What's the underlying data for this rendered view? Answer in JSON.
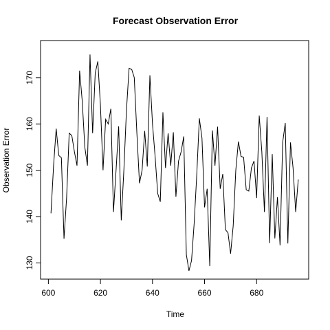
{
  "chart_data": {
    "type": "line",
    "title": "Forecast Observation Error",
    "xlabel": "Time",
    "ylabel": "Observation Error",
    "xlim": [
      597,
      700
    ],
    "ylim": [
      126.5,
      178
    ],
    "xticks": [
      600,
      620,
      640,
      660,
      680
    ],
    "yticks": [
      130,
      140,
      150,
      160,
      170
    ],
    "grid": false,
    "x": [
      601,
      602,
      603,
      604,
      605,
      606,
      607,
      608,
      609,
      610,
      611,
      612,
      613,
      614,
      615,
      616,
      617,
      618,
      619,
      620,
      621,
      622,
      623,
      624,
      625,
      626,
      627,
      628,
      629,
      630,
      631,
      632,
      633,
      634,
      635,
      636,
      637,
      638,
      639,
      640,
      641,
      642,
      643,
      644,
      645,
      646,
      647,
      648,
      649,
      650,
      651,
      652,
      653,
      654,
      655,
      656,
      657,
      658,
      659,
      660,
      661,
      662,
      663,
      664,
      665,
      666,
      667,
      668,
      669,
      670,
      671,
      672,
      673,
      674,
      675,
      676,
      677,
      678,
      679,
      680,
      681,
      682,
      683,
      684,
      685,
      686,
      687,
      688,
      689,
      690,
      691,
      692,
      693,
      694,
      695,
      696
    ],
    "series": [
      {
        "values": [
          140.7,
          151.0,
          159.0,
          153.2,
          152.7,
          135.2,
          144.0,
          158.0,
          157.5,
          154.0,
          151.0,
          171.5,
          165.0,
          155.0,
          151.0,
          175.0,
          158.0,
          171.0,
          173.5,
          164.0,
          150.0,
          161.0,
          160.0,
          163.3,
          141.0,
          150.0,
          159.5,
          139.2,
          150.0,
          163.0,
          172.0,
          171.8,
          170.0,
          158.0,
          147.2,
          150.0,
          158.5,
          150.8,
          170.5,
          160.0,
          153.0,
          145.0,
          143.2,
          162.5,
          150.5,
          158.0,
          151.0,
          158.2,
          144.3,
          152.0,
          154.0,
          157.3,
          131.8,
          128.3,
          130.5,
          138.5,
          149.0,
          161.2,
          157.0,
          142.0,
          146.0,
          129.3,
          158.6,
          151.0,
          159.4,
          146.0,
          149.2,
          137.2,
          136.5,
          132.0,
          138.0,
          150.0,
          156.2,
          153.0,
          152.8,
          145.8,
          145.5,
          150.5,
          152.0,
          144.0,
          161.8,
          154.0,
          141.0,
          161.5,
          134.3,
          153.5,
          135.3,
          144.2,
          133.8,
          156.0,
          160.2,
          134.2,
          156.0,
          150.5,
          141.0,
          148.0
        ]
      }
    ]
  }
}
